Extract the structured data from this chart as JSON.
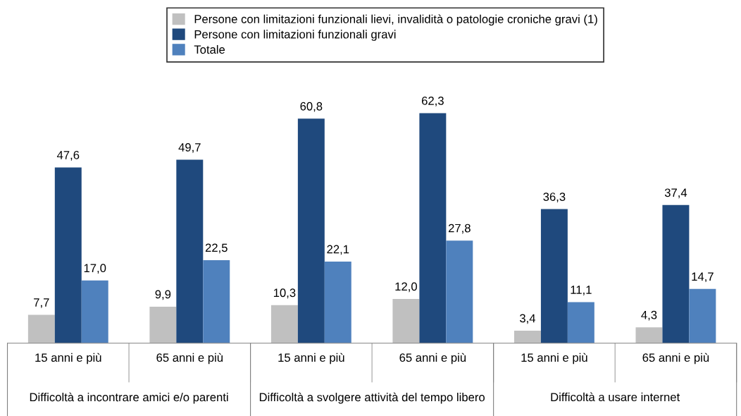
{
  "chart_data": {
    "type": "bar",
    "categories": [
      "15 anni e più",
      "65 anni e più",
      "15 anni e più",
      "65 anni e più",
      "15 anni e più",
      "65 anni e più"
    ],
    "series": [
      {
        "name": "Persone con limitazioni funzionali lievi, invalidità o patologie croniche gravi (1)",
        "color": "#c0c0c0",
        "values": [
          7.7,
          9.9,
          10.3,
          12.0,
          3.4,
          4.3
        ],
        "value_labels": [
          "7,7",
          "9,9",
          "10,3",
          "12,0",
          "3,4",
          "4,3"
        ]
      },
      {
        "name": "Persone con limitazioni funzionali gravi",
        "color": "#1f497d",
        "values": [
          47.6,
          49.7,
          60.8,
          62.3,
          36.3,
          37.4
        ],
        "value_labels": [
          "47,6",
          "49,7",
          "60,8",
          "62,3",
          "36,3",
          "37,4"
        ]
      },
      {
        "name": "Totale",
        "color": "#4f81bd",
        "values": [
          17.0,
          22.5,
          22.1,
          27.8,
          11.1,
          14.7
        ],
        "value_labels": [
          "17,0",
          "22,5",
          "22,1",
          "27,8",
          "11,1",
          "14,7"
        ]
      }
    ],
    "annotations": [
      "Difficoltà a incontrare amici e/o parenti",
      "Difficoltà a svolgere attività del tempo libero",
      "Difficoltà a usare internet"
    ],
    "legend": "top",
    "grid": false
  }
}
